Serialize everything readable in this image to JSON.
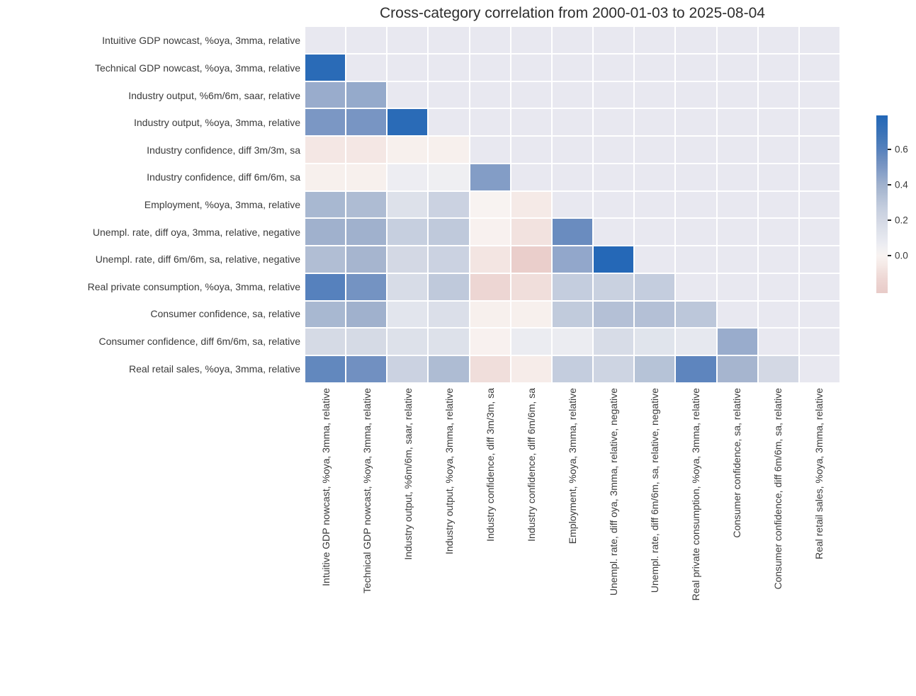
{
  "chart_data": {
    "type": "heatmap",
    "title": "Cross-category correlation from 2000-01-03 to 2025-08-04",
    "shape": "lower-triangle, diagonal masked",
    "labels": [
      "Intuitive GDP nowcast, %oya, 3mma, relative",
      "Technical GDP nowcast, %oya, 3mma, relative",
      "Industry output, %6m/6m, saar, relative",
      "Industry output, %oya, 3mma, relative",
      "Industry confidence, diff 3m/3m, sa",
      "Industry confidence, diff 6m/6m, sa",
      "Employment, %oya, 3mma, relative",
      "Unempl. rate, diff oya, 3mma, relative, negative",
      "Unempl. rate, diff 6m/6m, sa, relative, negative",
      "Real private consumption, %oya, 3mma, relative",
      "Consumer confidence, sa, relative",
      "Consumer confidence, diff 6m/6m, sa, relative",
      "Real retail sales, %oya, 3mma, relative"
    ],
    "values": [
      [],
      [
        0.76
      ],
      [
        0.42,
        0.43
      ],
      [
        0.5,
        0.51,
        0.76
      ],
      [
        -0.06,
        -0.06,
        -0.02,
        -0.02
      ],
      [
        -0.02,
        -0.02,
        0.06,
        0.05,
        0.48
      ],
      [
        0.37,
        0.35,
        0.15,
        0.24,
        0.0,
        -0.05
      ],
      [
        0.4,
        0.4,
        0.26,
        0.29,
        -0.01,
        -0.08,
        0.55
      ],
      [
        0.34,
        0.38,
        0.2,
        0.24,
        -0.07,
        -0.19,
        0.44,
        0.78
      ],
      [
        0.6,
        0.52,
        0.18,
        0.29,
        -0.14,
        -0.1,
        0.27,
        0.25,
        0.27
      ],
      [
        0.37,
        0.4,
        0.12,
        0.16,
        -0.02,
        -0.02,
        0.28,
        0.33,
        0.33,
        0.3
      ],
      [
        0.19,
        0.19,
        0.15,
        0.15,
        -0.01,
        0.07,
        0.07,
        0.18,
        0.13,
        0.1,
        0.42
      ],
      [
        0.57,
        0.53,
        0.24,
        0.35,
        -0.1,
        -0.04,
        0.27,
        0.23,
        0.32,
        0.58,
        0.38,
        0.2
      ]
    ],
    "color_scale": {
      "vmin": -0.21,
      "vmax": 0.79,
      "center": 0,
      "tick_labels": [
        "0.6",
        "0.4",
        "0.2",
        "0.0"
      ],
      "tick_values": [
        0.6,
        0.4,
        0.2,
        0.0
      ],
      "anchors": [
        {
          "v": -0.21,
          "c": "#e8cbc8"
        },
        {
          "v": -0.13,
          "c": "#eed7d4"
        },
        {
          "v": -0.08,
          "c": "#f2e2df"
        },
        {
          "v": -0.04,
          "c": "#f6ece9"
        },
        {
          "v": 0.0,
          "c": "#f8f3f1"
        },
        {
          "v": 0.04,
          "c": "#f1f0f2"
        },
        {
          "v": 0.08,
          "c": "#e9eaf1"
        },
        {
          "v": 0.12,
          "c": "#e2e5ed"
        },
        {
          "v": 0.16,
          "c": "#dbdfe9"
        },
        {
          "v": 0.2,
          "c": "#d3d8e4"
        },
        {
          "v": 0.25,
          "c": "#c9d1e0"
        },
        {
          "v": 0.3,
          "c": "#bcc7da"
        },
        {
          "v": 0.35,
          "c": "#aebcd3"
        },
        {
          "v": 0.4,
          "c": "#a0b1cd"
        },
        {
          "v": 0.45,
          "c": "#8ea5ca"
        },
        {
          "v": 0.5,
          "c": "#7b97c4"
        },
        {
          "v": 0.55,
          "c": "#6a8cbf"
        },
        {
          "v": 0.6,
          "c": "#5681bd"
        },
        {
          "v": 0.65,
          "c": "#477ab9"
        },
        {
          "v": 0.7,
          "c": "#3972b8"
        },
        {
          "v": 0.79,
          "c": "#2267b7"
        }
      ],
      "legend_position": "right"
    },
    "colors": {
      "masked_cell": "#e8e8f0",
      "grid_line": "#ffffff",
      "label_text": "#3a3a3a",
      "title_text": "#2e2e2e"
    }
  }
}
